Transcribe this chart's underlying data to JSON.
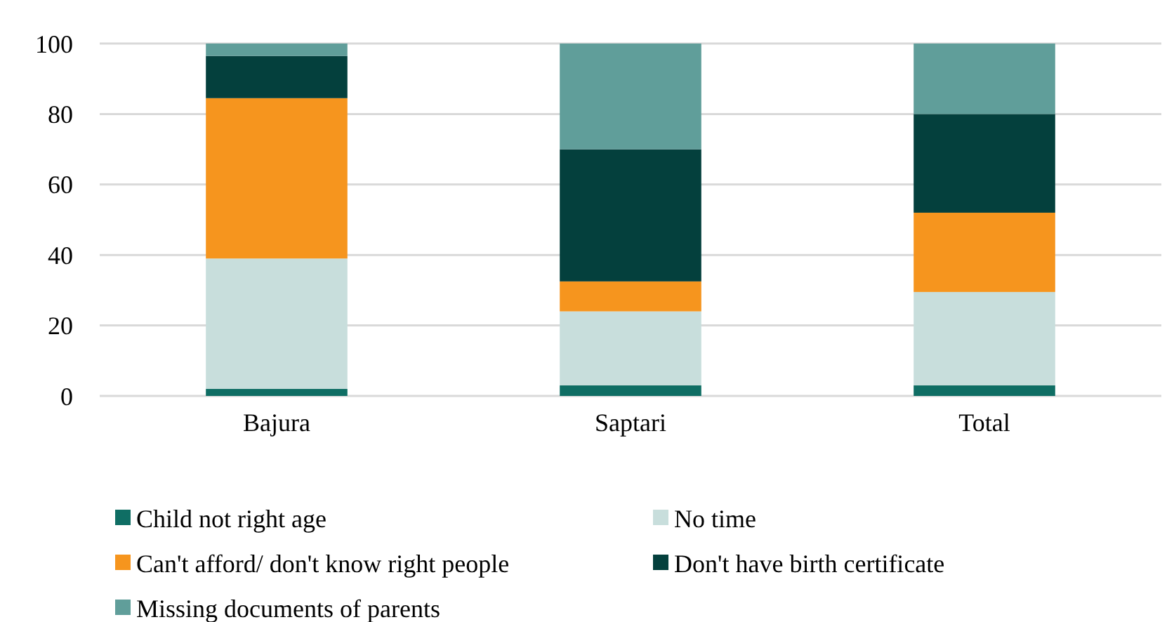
{
  "chart_data": {
    "type": "bar",
    "stacked": true,
    "categories": [
      "Bajura",
      "Saptari",
      "Total"
    ],
    "series": [
      {
        "name": "Child not right age",
        "color": "#0f6e64",
        "values": [
          2,
          3,
          3
        ]
      },
      {
        "name": "No time",
        "color": "#c8dedc",
        "values": [
          37,
          21,
          26.5
        ]
      },
      {
        "name": "Can't afford/ don't know right people",
        "color": "#f6951e",
        "values": [
          45.5,
          8.5,
          22.5
        ]
      },
      {
        "name": "Don't have birth certificate",
        "color": "#04403d",
        "values": [
          12,
          37.5,
          28
        ]
      },
      {
        "name": "Missing documents of parents",
        "color": "#609e9a",
        "values": [
          3.5,
          30,
          20
        ]
      }
    ],
    "ylim": [
      0,
      100
    ],
    "yticks": [
      0,
      20,
      40,
      60,
      80,
      100
    ],
    "grid": "y",
    "legend": "bottom"
  }
}
